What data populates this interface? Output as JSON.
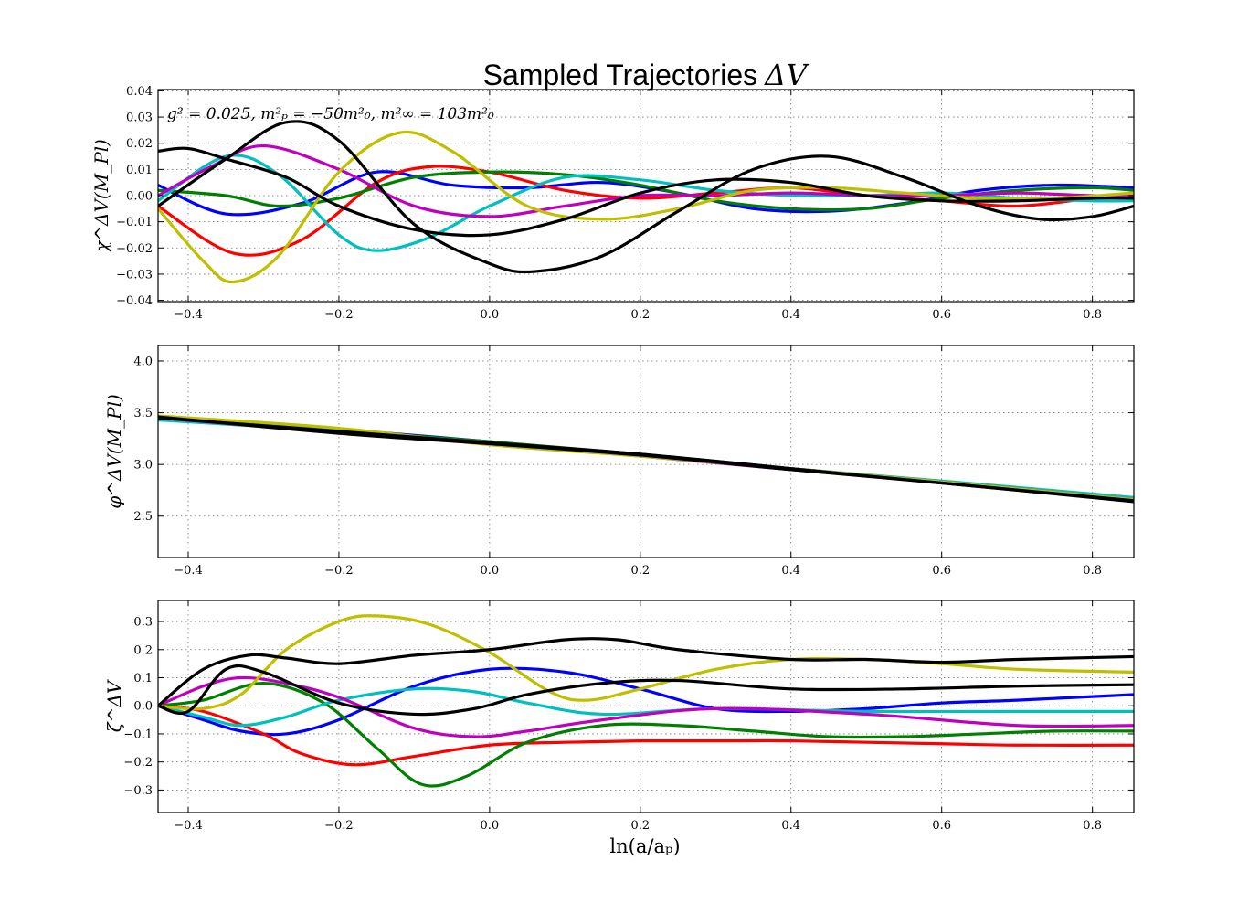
{
  "figure": {
    "title_text": "Sampled Trajectories",
    "title_math": "ΔV",
    "xlabel": "ln(a/aₚ)"
  },
  "chart_data": [
    {
      "type": "line",
      "panel": "top",
      "title": "Sampled Trajectories ΔV",
      "xlabel": "",
      "ylabel": "χ^ΔV(M_Pl)",
      "annotation": "g² = 0.025, m²ₚ = −50m²₀, m²∞ = 103m²₀",
      "xlim": [
        -0.44,
        0.855
      ],
      "ylim": [
        -0.0405,
        0.0405
      ],
      "xticks": [
        -0.4,
        -0.2,
        0.0,
        0.2,
        0.4,
        0.6,
        0.8
      ],
      "xtick_labels": [
        "−0.4",
        "−0.2",
        "0.0",
        "0.2",
        "0.4",
        "0.6",
        "0.8"
      ],
      "yticks": [
        -0.04,
        -0.03,
        -0.02,
        -0.01,
        0.0,
        0.01,
        0.02,
        0.03,
        0.04
      ],
      "ytick_labels": [
        "−0.04",
        "−0.03",
        "−0.02",
        "−0.01",
        "0.00",
        "0.01",
        "0.02",
        "0.03",
        "0.04"
      ],
      "grid": true,
      "series": [
        {
          "color": "#0000ff",
          "x": [
            -0.44,
            -0.35,
            -0.25,
            -0.15,
            -0.05,
            0.05,
            0.15,
            0.25,
            0.35,
            0.45,
            0.55,
            0.65,
            0.75,
            0.855
          ],
          "y": [
            0.004,
            -0.007,
            -0.003,
            0.009,
            0.004,
            0.003,
            0.005,
            0.001,
            -0.005,
            -0.006,
            -0.003,
            0.002,
            0.004,
            0.003
          ]
        },
        {
          "color": "#ff0000",
          "x": [
            -0.44,
            -0.34,
            -0.25,
            -0.15,
            -0.08,
            0.0,
            0.1,
            0.2,
            0.3,
            0.4,
            0.5,
            0.6,
            0.7,
            0.8,
            0.855
          ],
          "y": [
            -0.004,
            -0.022,
            -0.017,
            0.005,
            0.011,
            0.009,
            0.002,
            -0.001,
            0.001,
            0.003,
            0.0,
            -0.002,
            -0.004,
            -0.001,
            0.0
          ]
        },
        {
          "color": "#008000",
          "x": [
            -0.44,
            -0.35,
            -0.28,
            -0.2,
            -0.1,
            0.0,
            0.1,
            0.2,
            0.3,
            0.4,
            0.5,
            0.6,
            0.7,
            0.8,
            0.855
          ],
          "y": [
            0.002,
            0.0,
            -0.004,
            -0.001,
            0.007,
            0.009,
            0.008,
            0.004,
            -0.002,
            -0.005,
            -0.005,
            -0.001,
            0.002,
            0.003,
            0.002
          ]
        },
        {
          "color": "#00bfbf",
          "x": [
            -0.44,
            -0.35,
            -0.28,
            -0.2,
            -0.15,
            -0.08,
            0.0,
            0.1,
            0.2,
            0.3,
            0.4,
            0.5,
            0.6,
            0.7,
            0.8,
            0.855
          ],
          "y": [
            -0.002,
            0.015,
            0.008,
            -0.015,
            -0.021,
            -0.016,
            -0.004,
            0.007,
            0.006,
            0.002,
            0.0,
            0.0,
            0.001,
            -0.001,
            -0.002,
            -0.002
          ]
        },
        {
          "color": "#bf00bf",
          "x": [
            -0.44,
            -0.37,
            -0.3,
            -0.2,
            -0.1,
            0.0,
            0.1,
            0.2,
            0.3,
            0.4,
            0.5,
            0.6,
            0.7,
            0.8,
            0.855
          ],
          "y": [
            0.0,
            0.011,
            0.019,
            0.01,
            -0.004,
            -0.008,
            -0.004,
            0.0,
            0.0,
            0.001,
            0.0,
            0.0,
            0.001,
            0.0,
            0.0
          ]
        },
        {
          "color": "#bfbf00",
          "x": [
            -0.44,
            -0.38,
            -0.34,
            -0.28,
            -0.2,
            -0.12,
            -0.05,
            0.05,
            0.15,
            0.25,
            0.35,
            0.45,
            0.55,
            0.65,
            0.75,
            0.855
          ],
          "y": [
            -0.005,
            -0.025,
            -0.033,
            -0.023,
            0.009,
            0.024,
            0.017,
            -0.004,
            -0.009,
            -0.005,
            0.002,
            0.003,
            0.001,
            -0.001,
            -0.001,
            0.001
          ]
        },
        {
          "color": "#000000",
          "x": [
            -0.44,
            -0.4,
            -0.35,
            -0.27,
            -0.2,
            -0.1,
            0.0,
            0.1,
            0.2,
            0.3,
            0.4,
            0.5,
            0.6,
            0.7,
            0.8,
            0.855
          ],
          "y": [
            0.017,
            0.018,
            0.014,
            0.007,
            -0.004,
            -0.013,
            -0.015,
            -0.009,
            0.001,
            0.006,
            0.005,
            0.0,
            -0.002,
            -0.002,
            -0.001,
            -0.001
          ]
        },
        {
          "color": "#000000",
          "x": [
            -0.44,
            -0.35,
            -0.27,
            -0.2,
            -0.1,
            0.0,
            0.06,
            0.15,
            0.25,
            0.35,
            0.45,
            0.55,
            0.65,
            0.73,
            0.8,
            0.855
          ],
          "y": [
            -0.004,
            0.014,
            0.028,
            0.021,
            -0.011,
            -0.026,
            -0.029,
            -0.023,
            -0.006,
            0.01,
            0.015,
            0.007,
            -0.004,
            -0.009,
            -0.008,
            -0.004
          ]
        }
      ]
    },
    {
      "type": "line",
      "panel": "middle",
      "title": "",
      "xlabel": "",
      "ylabel": "φ^ΔV(M_Pl)",
      "xlim": [
        -0.44,
        0.855
      ],
      "ylim": [
        2.1,
        4.15
      ],
      "xticks": [
        -0.4,
        -0.2,
        0.0,
        0.2,
        0.4,
        0.6,
        0.8
      ],
      "xtick_labels": [
        "−0.4",
        "−0.2",
        "0.0",
        "0.2",
        "0.4",
        "0.6",
        "0.8"
      ],
      "yticks": [
        2.5,
        3.0,
        3.5,
        4.0
      ],
      "ytick_labels": [
        "2.5",
        "3.0",
        "3.5",
        "4.0"
      ],
      "grid": true,
      "series": [
        {
          "color": "#0000ff",
          "x": [
            -0.44,
            -0.2,
            0.0,
            0.2,
            0.4,
            0.6,
            0.855
          ],
          "y": [
            3.46,
            3.34,
            3.22,
            3.09,
            2.96,
            2.83,
            2.66
          ]
        },
        {
          "color": "#ff0000",
          "x": [
            -0.44,
            -0.2,
            0.0,
            0.2,
            0.4,
            0.6,
            0.855
          ],
          "y": [
            3.46,
            3.33,
            3.21,
            3.09,
            2.96,
            2.83,
            2.66
          ]
        },
        {
          "color": "#008000",
          "x": [
            -0.44,
            -0.2,
            0.0,
            0.2,
            0.4,
            0.6,
            0.855
          ],
          "y": [
            3.45,
            3.33,
            3.22,
            3.1,
            2.96,
            2.83,
            2.67
          ]
        },
        {
          "color": "#00bfbf",
          "x": [
            -0.44,
            -0.2,
            0.0,
            0.2,
            0.4,
            0.6,
            0.855
          ],
          "y": [
            3.43,
            3.32,
            3.21,
            3.09,
            2.96,
            2.84,
            2.68
          ]
        },
        {
          "color": "#bf00bf",
          "x": [
            -0.44,
            -0.2,
            0.0,
            0.2,
            0.4,
            0.6,
            0.855
          ],
          "y": [
            3.45,
            3.31,
            3.2,
            3.08,
            2.95,
            2.83,
            2.66
          ]
        },
        {
          "color": "#bfbf00",
          "x": [
            -0.44,
            -0.2,
            0.0,
            0.2,
            0.4,
            0.6,
            0.855
          ],
          "y": [
            3.47,
            3.35,
            3.19,
            3.08,
            2.96,
            2.83,
            2.66
          ]
        },
        {
          "color": "#000000",
          "x": [
            -0.44,
            -0.2,
            0.0,
            0.2,
            0.4,
            0.6,
            0.855
          ],
          "y": [
            3.45,
            3.32,
            3.21,
            3.1,
            2.96,
            2.82,
            2.65
          ]
        },
        {
          "color": "#000000",
          "x": [
            -0.44,
            -0.2,
            0.0,
            0.2,
            0.4,
            0.6,
            0.855
          ],
          "y": [
            3.46,
            3.3,
            3.2,
            3.09,
            2.95,
            2.82,
            2.64
          ]
        }
      ]
    },
    {
      "type": "line",
      "panel": "bottom",
      "title": "",
      "xlabel": "ln(a/aₚ)",
      "ylabel": "ζ^ΔV",
      "xlim": [
        -0.44,
        0.855
      ],
      "ylim": [
        -0.38,
        0.375
      ],
      "xticks": [
        -0.4,
        -0.2,
        0.0,
        0.2,
        0.4,
        0.6,
        0.8
      ],
      "xtick_labels": [
        "−0.4",
        "−0.2",
        "0.0",
        "0.2",
        "0.4",
        "0.6",
        "0.8"
      ],
      "yticks": [
        -0.3,
        -0.2,
        -0.1,
        0.0,
        0.1,
        0.2,
        0.3
      ],
      "ytick_labels": [
        "−0.3",
        "−0.2",
        "−0.1",
        "0.0",
        "0.1",
        "0.2",
        "0.3"
      ],
      "grid": true,
      "series": [
        {
          "color": "#0000ff",
          "x": [
            -0.44,
            -0.38,
            -0.33,
            -0.27,
            -0.2,
            -0.1,
            0.0,
            0.1,
            0.2,
            0.3,
            0.4,
            0.5,
            0.6,
            0.7,
            0.855
          ],
          "y": [
            0.0,
            -0.05,
            -0.09,
            -0.1,
            -0.05,
            0.07,
            0.13,
            0.12,
            0.06,
            -0.01,
            -0.02,
            -0.01,
            0.01,
            0.02,
            0.04
          ]
        },
        {
          "color": "#ff0000",
          "x": [
            -0.44,
            -0.38,
            -0.3,
            -0.25,
            -0.18,
            -0.1,
            0.0,
            0.1,
            0.2,
            0.3,
            0.4,
            0.5,
            0.6,
            0.7,
            0.855
          ],
          "y": [
            0.0,
            -0.02,
            -0.1,
            -0.17,
            -0.21,
            -0.18,
            -0.14,
            -0.13,
            -0.125,
            -0.125,
            -0.125,
            -0.13,
            -0.135,
            -0.14,
            -0.14
          ]
        },
        {
          "color": "#008000",
          "x": [
            -0.44,
            -0.38,
            -0.3,
            -0.22,
            -0.15,
            -0.09,
            -0.03,
            0.05,
            0.15,
            0.25,
            0.35,
            0.45,
            0.55,
            0.65,
            0.75,
            0.855
          ],
          "y": [
            0.0,
            0.02,
            0.08,
            0.01,
            -0.15,
            -0.28,
            -0.25,
            -0.13,
            -0.07,
            -0.07,
            -0.09,
            -0.11,
            -0.11,
            -0.1,
            -0.09,
            -0.09
          ]
        },
        {
          "color": "#00bfbf",
          "x": [
            -0.44,
            -0.38,
            -0.33,
            -0.27,
            -0.2,
            -0.1,
            -0.02,
            0.05,
            0.15,
            0.3,
            0.5,
            0.7,
            0.855
          ],
          "y": [
            0.0,
            -0.04,
            -0.07,
            -0.04,
            0.02,
            0.06,
            0.05,
            0.01,
            -0.03,
            -0.01,
            -0.02,
            -0.02,
            -0.02
          ]
        },
        {
          "color": "#bf00bf",
          "x": [
            -0.44,
            -0.38,
            -0.33,
            -0.27,
            -0.2,
            -0.1,
            -0.02,
            0.05,
            0.15,
            0.3,
            0.5,
            0.7,
            0.855
          ],
          "y": [
            0.0,
            0.07,
            0.1,
            0.08,
            0.03,
            -0.08,
            -0.11,
            -0.09,
            -0.05,
            -0.01,
            -0.03,
            -0.07,
            -0.07
          ]
        },
        {
          "color": "#bfbf00",
          "x": [
            -0.44,
            -0.38,
            -0.33,
            -0.27,
            -0.2,
            -0.15,
            -0.08,
            0.0,
            0.08,
            0.13,
            0.2,
            0.3,
            0.4,
            0.5,
            0.6,
            0.7,
            0.855
          ],
          "y": [
            0.0,
            -0.01,
            0.04,
            0.2,
            0.3,
            0.32,
            0.29,
            0.19,
            0.05,
            0.02,
            0.06,
            0.13,
            0.165,
            0.165,
            0.15,
            0.13,
            0.12
          ]
        },
        {
          "color": "#000000",
          "x": [
            -0.44,
            -0.38,
            -0.32,
            -0.27,
            -0.2,
            -0.1,
            0.0,
            0.1,
            0.17,
            0.25,
            0.4,
            0.5,
            0.6,
            0.7,
            0.855
          ],
          "y": [
            0.0,
            0.13,
            0.18,
            0.17,
            0.15,
            0.18,
            0.2,
            0.235,
            0.235,
            0.2,
            0.165,
            0.165,
            0.155,
            0.165,
            0.175
          ]
        },
        {
          "color": "#000000",
          "x": [
            -0.44,
            -0.4,
            -0.35,
            -0.3,
            -0.2,
            -0.1,
            -0.02,
            0.05,
            0.15,
            0.25,
            0.4,
            0.55,
            0.7,
            0.855
          ],
          "y": [
            0.0,
            -0.02,
            0.13,
            0.12,
            0.01,
            -0.03,
            -0.01,
            0.04,
            0.08,
            0.09,
            0.06,
            0.06,
            0.07,
            0.075
          ]
        }
      ]
    }
  ]
}
